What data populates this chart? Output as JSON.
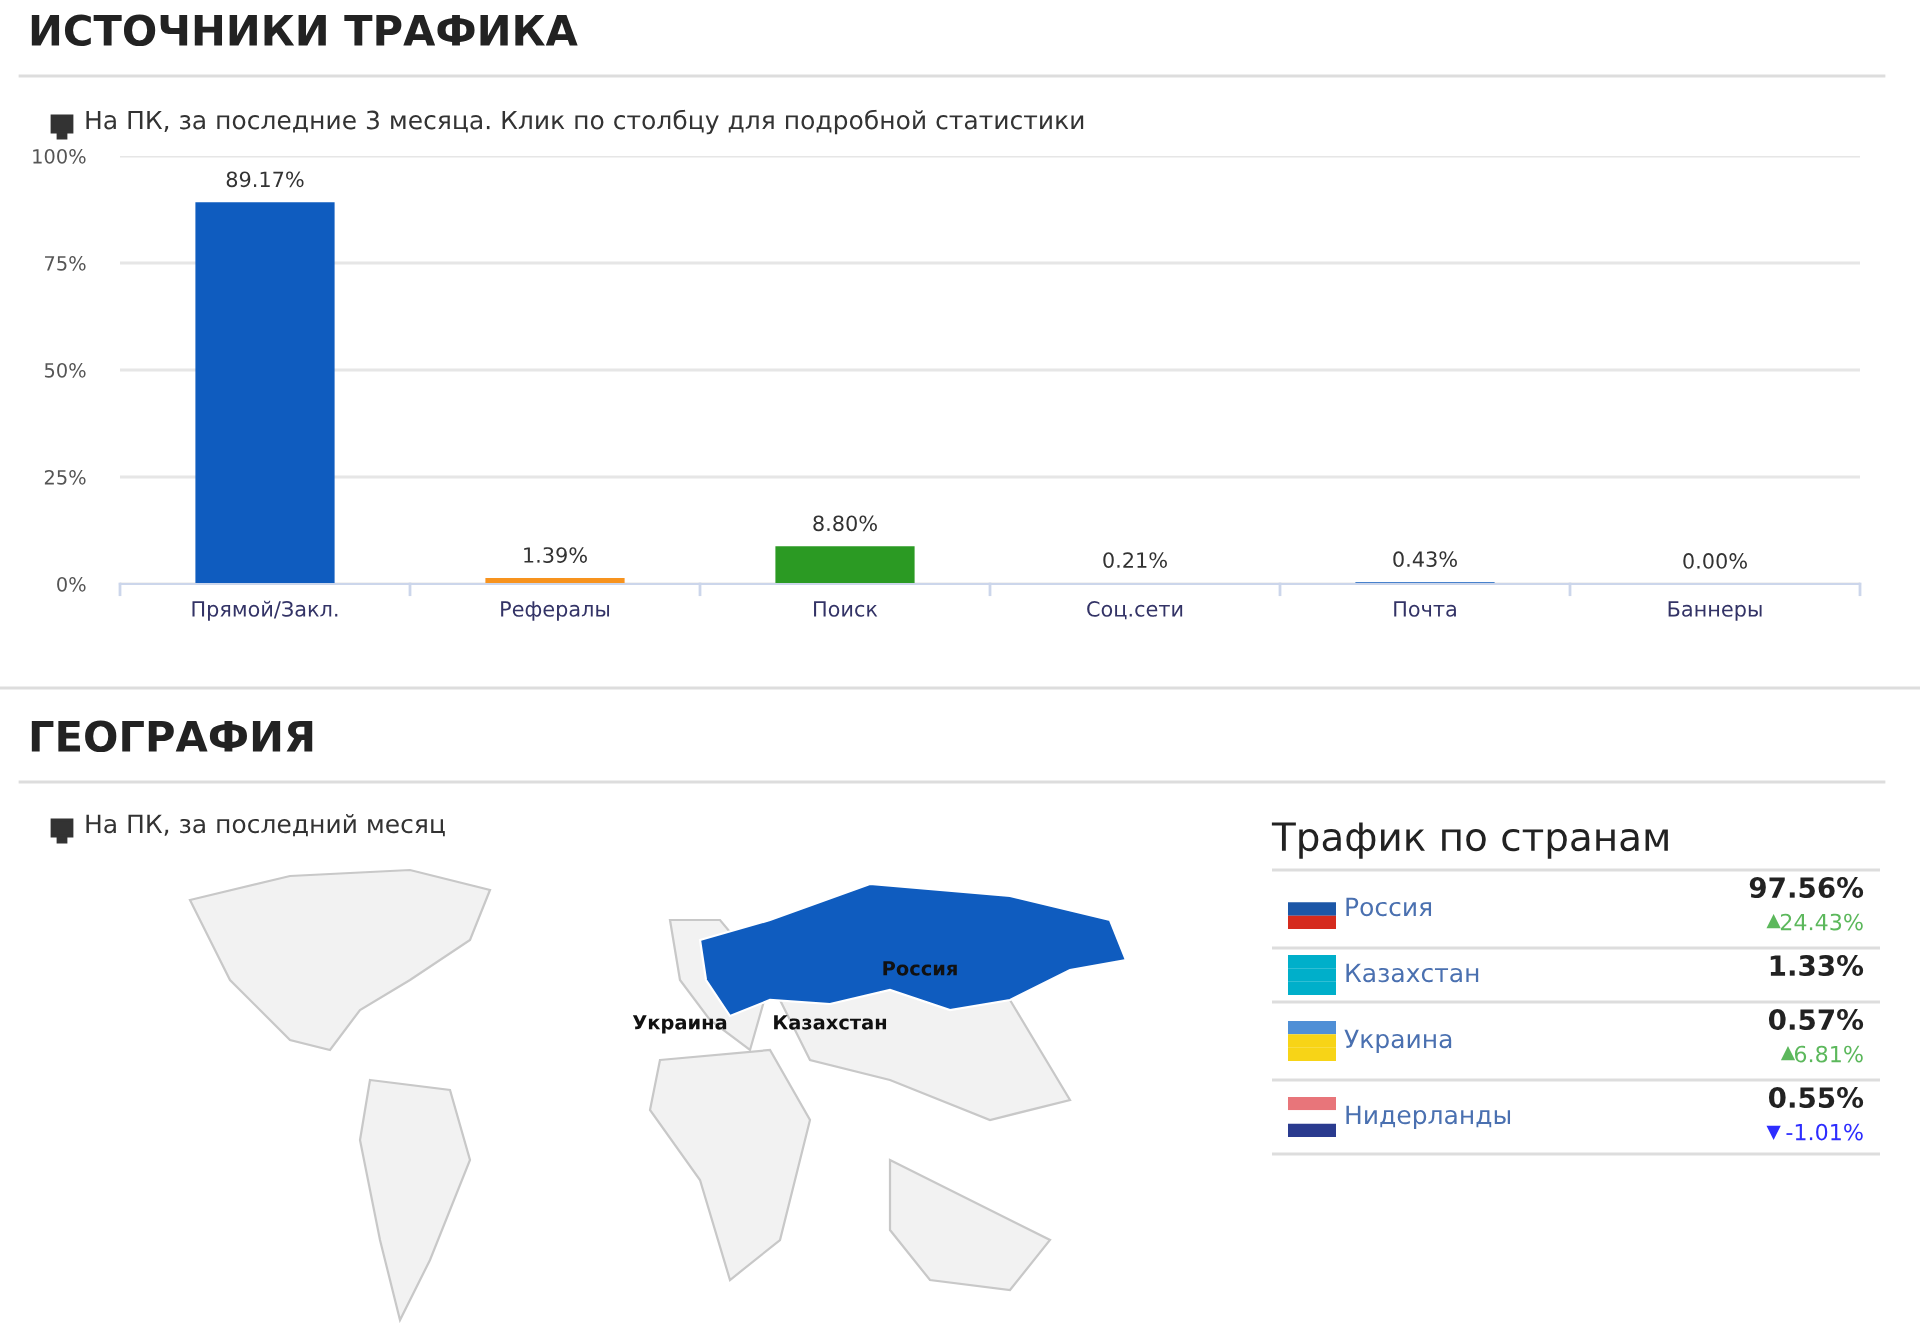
{
  "chart_data": [
    {
      "type": "bar",
      "title": "ИСТОЧНИКИ ТРАФИКА",
      "subtitle": "На ПК, за последние 3 месяца. Клик по столбцу для подробной статистики",
      "categories": [
        "Прямой/Закл.",
        "Рефералы",
        "Поиск",
        "Соц.сети",
        "Почта",
        "Баннеры"
      ],
      "values": [
        89.17,
        1.39,
        8.8,
        0.21,
        0.43,
        0.0
      ],
      "value_labels": [
        "89.17%",
        "1.39%",
        "8.80%",
        "0.21%",
        "0.43%",
        "0.00%"
      ],
      "colors": [
        "#0f5cbf",
        "#f7931e",
        "#2b9a23",
        "#0f5cbf",
        "#0f5cbf",
        "#0f5cbf"
      ],
      "ylim": [
        0,
        100
      ],
      "yticks": [
        {
          "value": 0,
          "label": "0%"
        },
        {
          "value": 25,
          "label": "25%"
        },
        {
          "value": 50,
          "label": "50%"
        },
        {
          "value": 75,
          "label": "75%"
        },
        {
          "value": 100,
          "label": "100%"
        }
      ],
      "grid": "y"
    },
    {
      "type": "other",
      "title": "ГЕОГРАФИЯ",
      "subtitle": "На ПК, за последний месяц",
      "annotations": [
        "Россия",
        "Украина",
        "Казахстан"
      ]
    },
    {
      "type": "other",
      "title": "Трафик по странам",
      "categories": [
        "Россия",
        "Казахстан",
        "Украина",
        "Нидерланды"
      ],
      "series": [
        {
          "values": [
            97.56,
            1.33,
            0.57,
            0.55
          ],
          "value_labels": [
            "97.56%",
            "1.33%",
            "0.57%",
            "0.55%"
          ],
          "color": "#222222"
        },
        {
          "values": [
            24.43,
            null,
            6.81,
            -1.01
          ],
          "value_labels": [
            "24.43%",
            null,
            "6.81%",
            "-1.01%"
          ],
          "colors": [
            "#5cb85c",
            null,
            "#5cb85c",
            "#2d2dff"
          ]
        }
      ]
    }
  ]
}
